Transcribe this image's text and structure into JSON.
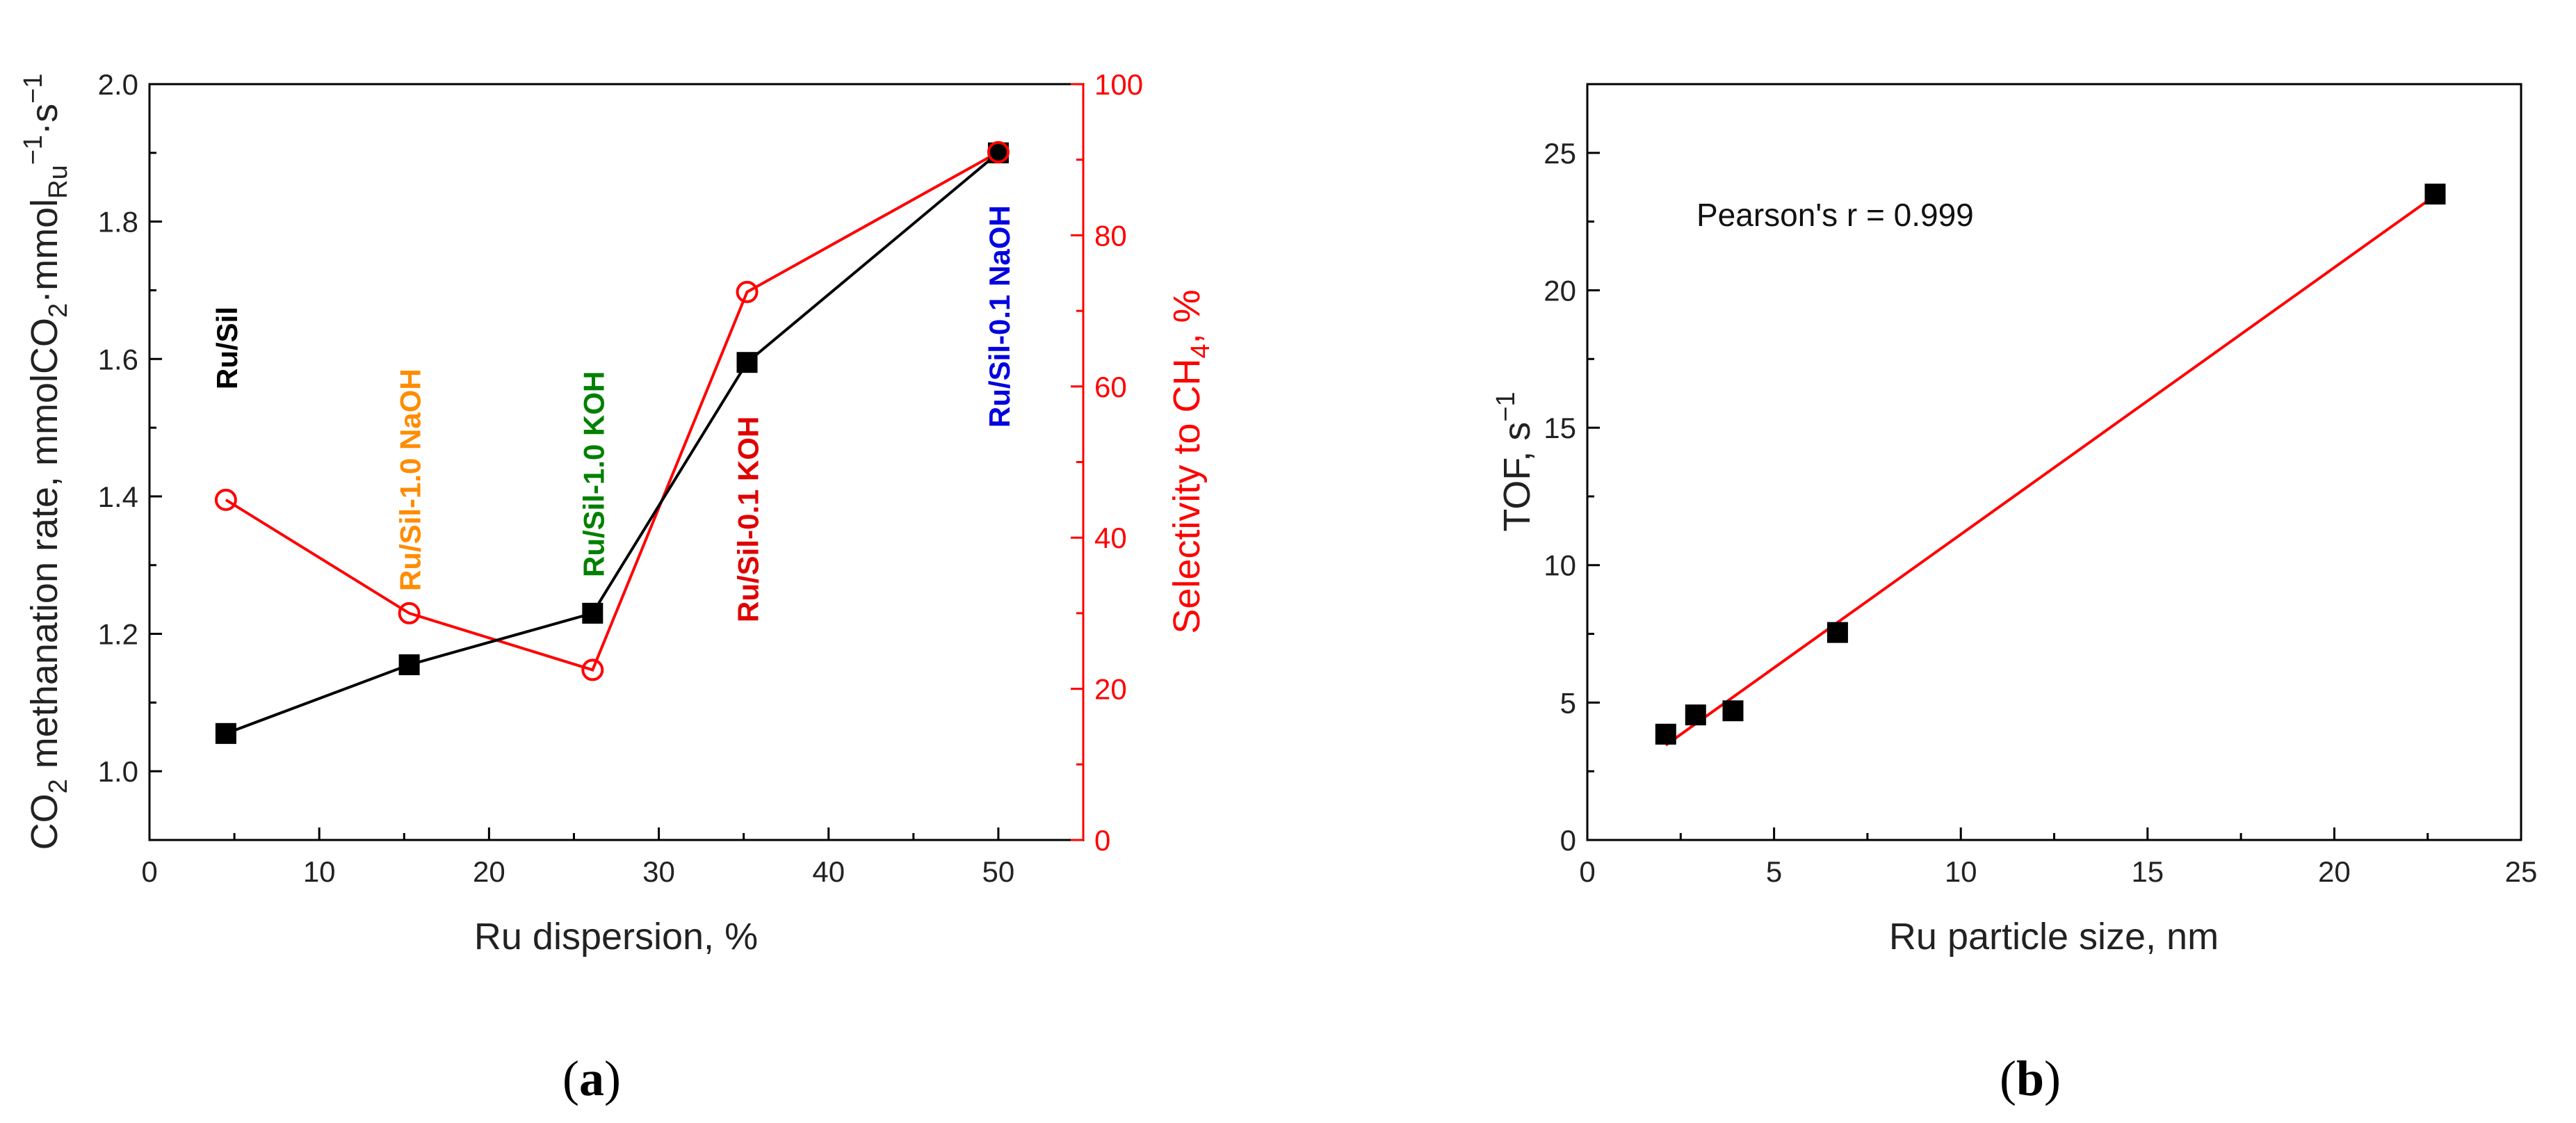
{
  "chart_data": [
    {
      "panel_label": "(a)",
      "type": "line",
      "xlabel": "Ru dispersion, %",
      "ylabel_left": "CO2 methanation rate, mmolCO2·mmolRu−1·s−1",
      "ylabel_right": "Selectivity to CH4, %",
      "xlim": [
        0,
        55
      ],
      "ylim_left": [
        0.9,
        2.0
      ],
      "ylim_right": [
        0,
        100
      ],
      "x_ticks": [
        0,
        10,
        20,
        30,
        40,
        50
      ],
      "y_left_ticks": [
        1.0,
        1.2,
        1.4,
        1.6,
        1.8,
        2.0
      ],
      "y_right_ticks": [
        0,
        20,
        40,
        60,
        80,
        100
      ],
      "colors": {
        "rate": "#000000",
        "selectivity": "#ff0000",
        "axis_right": "#ff0000"
      },
      "series": [
        {
          "axis": "left",
          "marker": "filled-square",
          "x": [
            4.5,
            15.3,
            26.1,
            35.2,
            50.0
          ],
          "values": [
            1.055,
            1.155,
            1.23,
            1.595,
            1.9
          ]
        },
        {
          "axis": "right",
          "marker": "open-circle",
          "x": [
            4.5,
            15.3,
            26.1,
            35.2,
            50.0
          ],
          "values": [
            45,
            30,
            22.5,
            72.5,
            91
          ]
        }
      ],
      "sample_labels": [
        {
          "text": "Ru/Sil",
          "x": 4.5,
          "color": "#000000"
        },
        {
          "text": "Ru/Sil-1.0 NaOH",
          "x": 15.3,
          "color": "#ff8c00"
        },
        {
          "text": "Ru/Sil-1.0 KOH",
          "x": 26.1,
          "color": "#008000"
        },
        {
          "text": "Ru/Sil-0.1 KOH",
          "x": 35.2,
          "color": "#e00000"
        },
        {
          "text": "Ru/Sil-0.1 NaOH",
          "x": 50.0,
          "color": "#0000e0"
        }
      ]
    },
    {
      "panel_label": "(b)",
      "type": "scatter",
      "xlabel": "Ru particle size, nm",
      "ylabel": "TOF, s−1",
      "xlim": [
        0,
        25
      ],
      "ylim": [
        0,
        27.5
      ],
      "x_ticks": [
        0,
        5,
        10,
        15,
        20,
        25
      ],
      "y_ticks": [
        0,
        5,
        10,
        15,
        20,
        25
      ],
      "annotation": "Pearson's r = 0.999",
      "colors": {
        "points": "#000000",
        "fit": "#ff0000"
      },
      "points": {
        "x": [
          2.1,
          2.9,
          3.9,
          6.7,
          22.7
        ],
        "y": [
          3.85,
          4.55,
          4.7,
          7.55,
          23.5
        ]
      },
      "fit": {
        "x": [
          2.1,
          22.7
        ],
        "y": [
          3.45,
          23.45
        ]
      }
    }
  ]
}
